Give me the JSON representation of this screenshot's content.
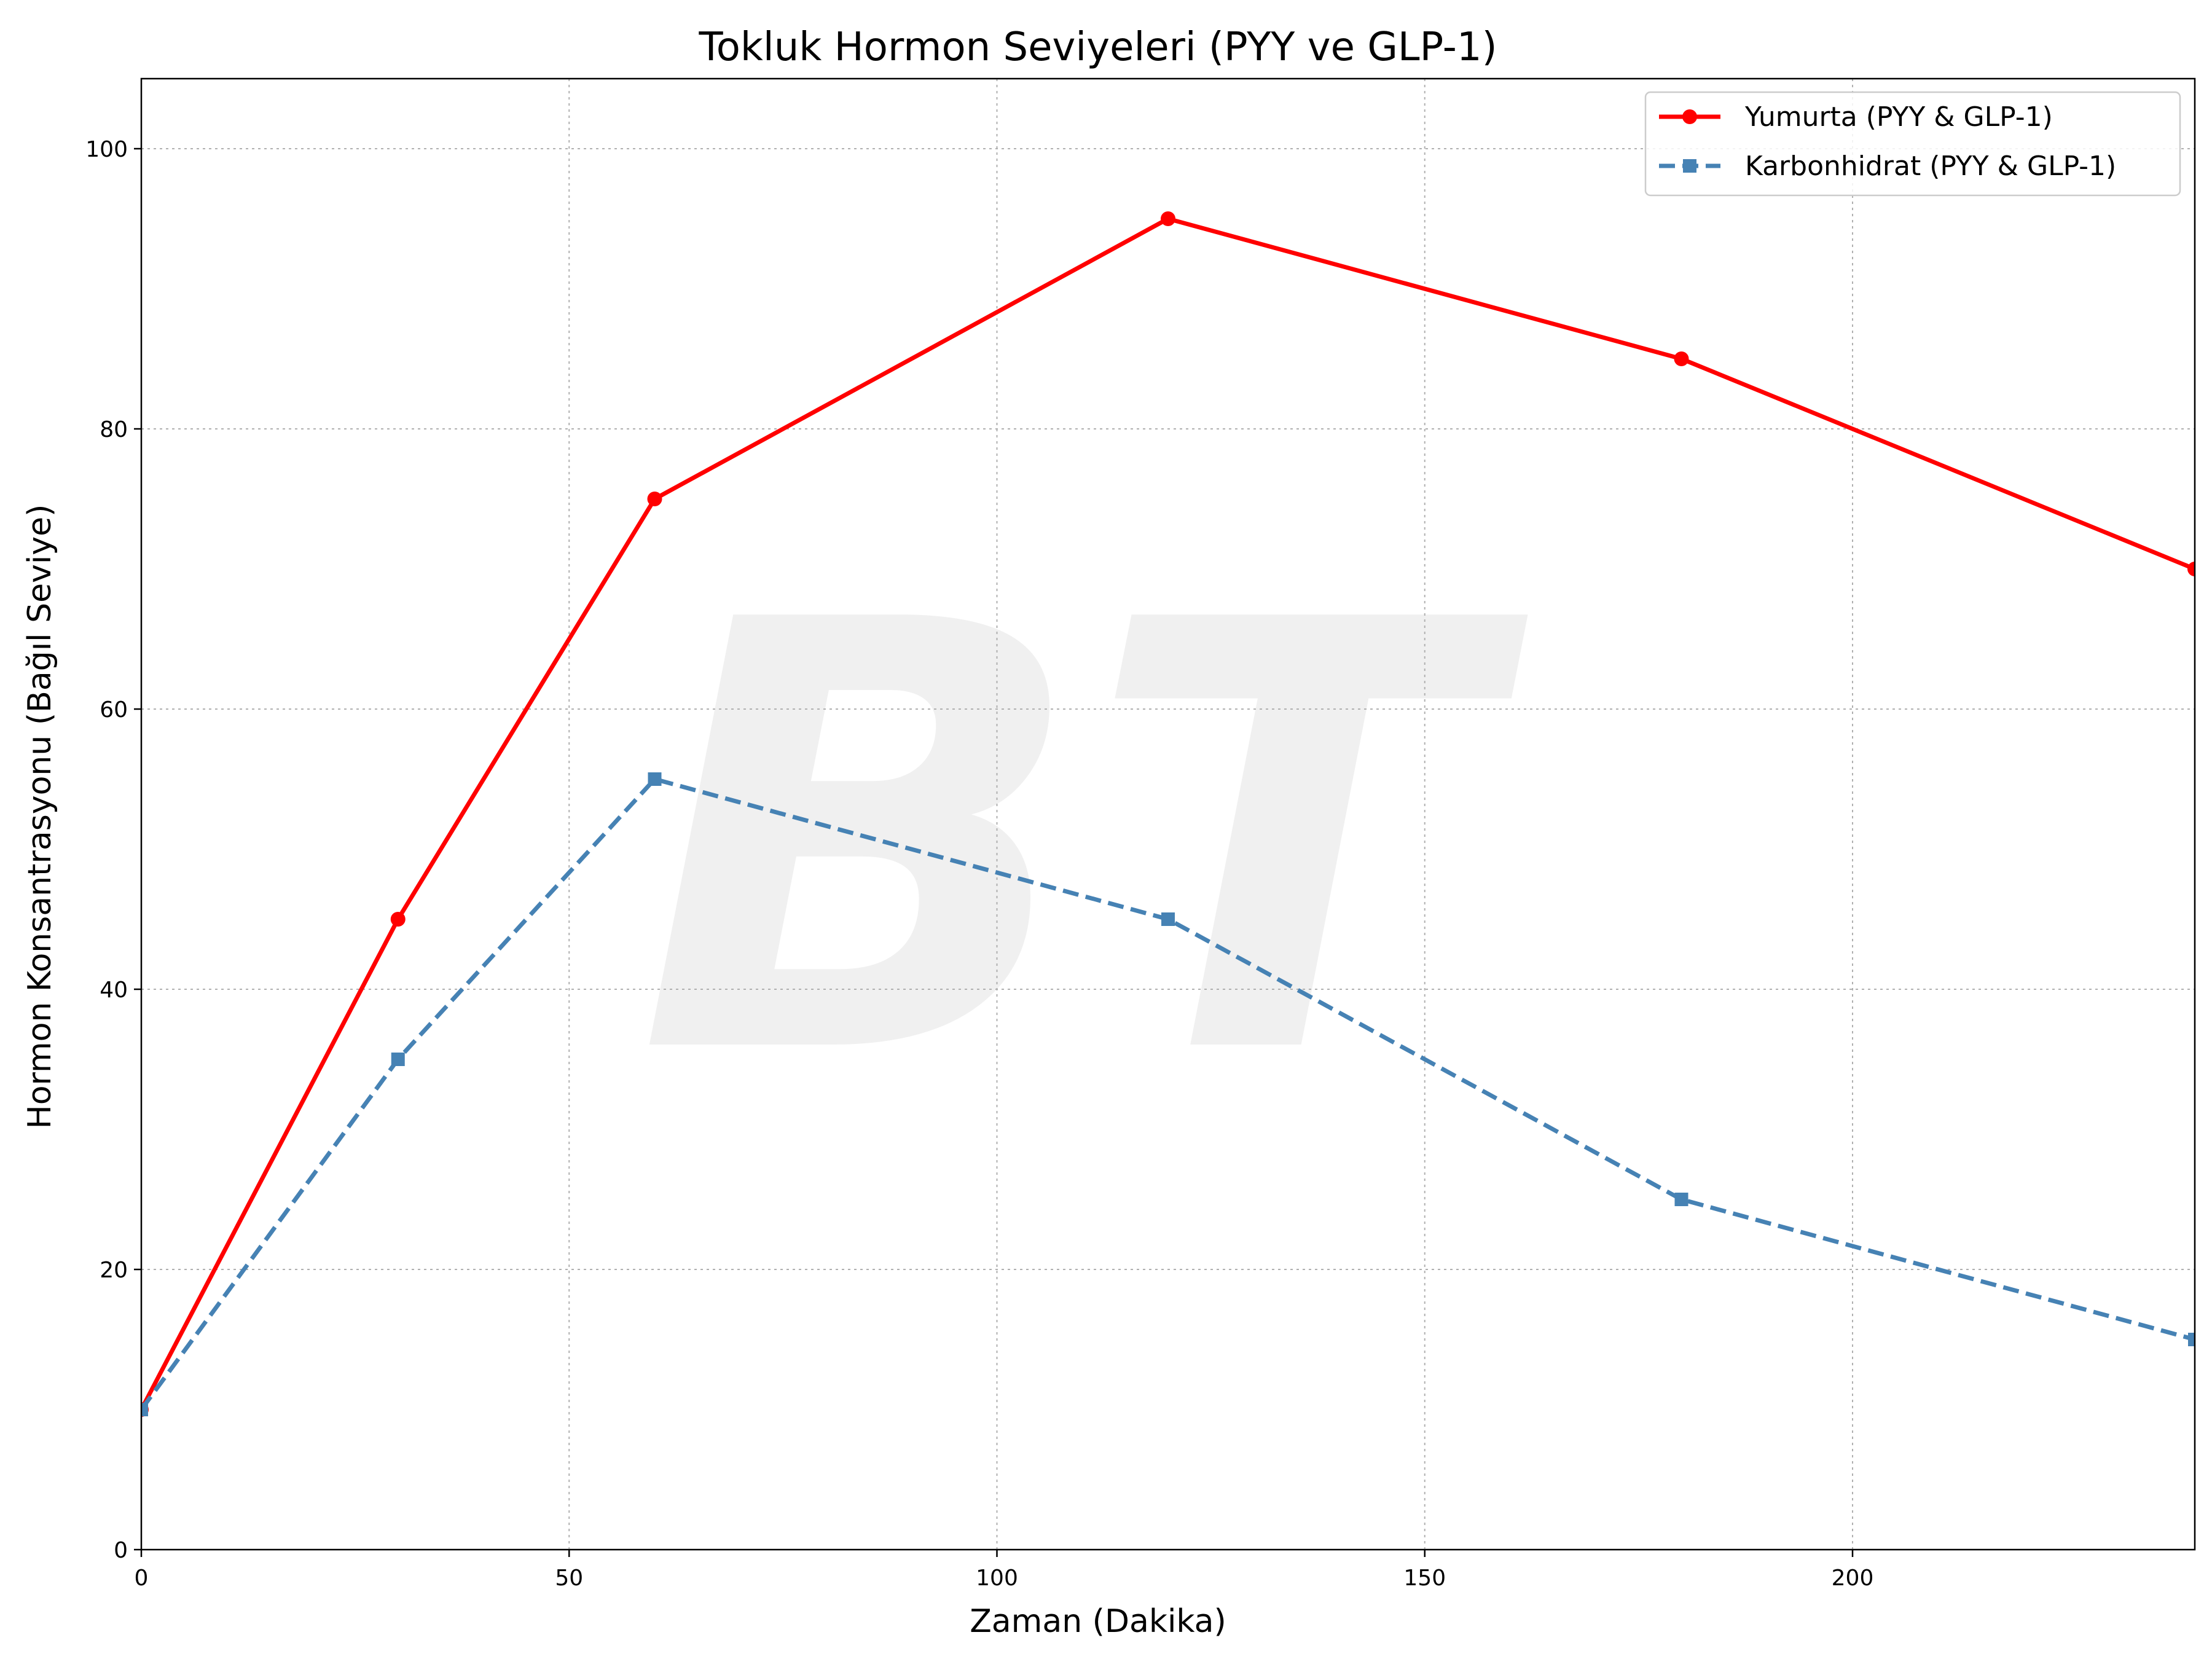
{
  "chart_data": {
    "type": "line",
    "title": "Tokluk Hormon Seviyeleri (PYY ve GLP-1)",
    "xlabel": "Zaman (Dakika)",
    "ylabel": "Hormon Konsantrasyonu (Bağıl Seviye)",
    "xlim": [
      0,
      240
    ],
    "ylim": [
      0,
      105
    ],
    "xticks": [
      0,
      50,
      100,
      150,
      200
    ],
    "yticks": [
      0,
      20,
      40,
      60,
      80,
      100
    ],
    "grid": true,
    "legend_position": "top-right",
    "series": [
      {
        "name": "Yumurta (PYY & GLP-1)",
        "color": "#ff0000",
        "line_style": "solid",
        "marker": "circle",
        "x": [
          0,
          30,
          60,
          120,
          180,
          240
        ],
        "y": [
          10,
          45,
          75,
          95,
          85,
          70
        ]
      },
      {
        "name": "Karbonhidrat (PYY & GLP-1)",
        "color": "#4682b4",
        "line_style": "dashed",
        "marker": "square",
        "x": [
          0,
          30,
          60,
          120,
          180,
          240
        ],
        "y": [
          10,
          35,
          55,
          45,
          25,
          15
        ]
      }
    ],
    "watermark": "BT"
  }
}
